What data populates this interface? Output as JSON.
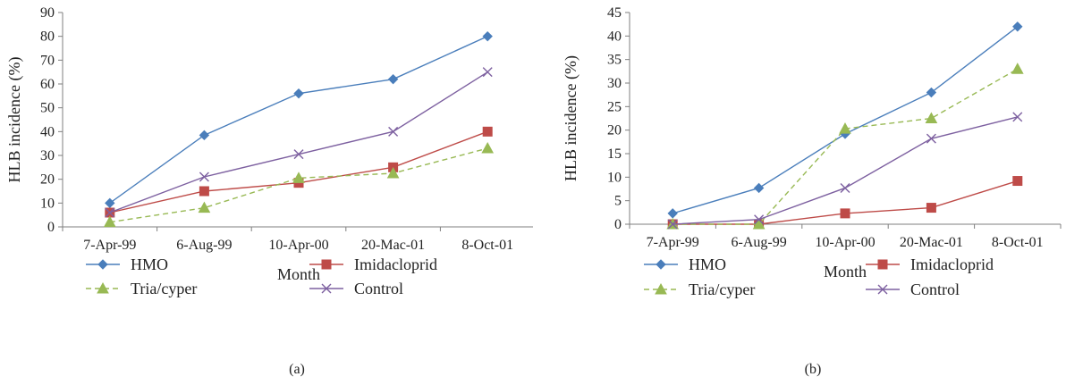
{
  "chart_data": [
    {
      "type": "line",
      "panel_label": "(a)",
      "categories": [
        "7-Apr-99",
        "6-Aug-99",
        "10-Apr-00",
        "20-Mac-01",
        "8-Oct-01"
      ],
      "series": [
        {
          "name": "HMO",
          "values": [
            10,
            38.5,
            56,
            62,
            80
          ],
          "color": "#4a7ebb",
          "marker": "diamond",
          "dash": false
        },
        {
          "name": "Imidacloprid",
          "values": [
            6,
            15,
            18.5,
            25,
            40
          ],
          "color": "#be4b48",
          "marker": "square",
          "dash": false
        },
        {
          "name": "Tria/cyper",
          "values": [
            2,
            8,
            20.5,
            22.5,
            33
          ],
          "color": "#98b954",
          "marker": "triangle",
          "dash": true
        },
        {
          "name": "Control",
          "values": [
            6,
            21,
            30.5,
            40,
            65
          ],
          "color": "#7d60a0",
          "marker": "x",
          "dash": false
        }
      ],
      "xlabel": "Month",
      "ylabel": "HLB incidence (%)",
      "ylim": [
        0,
        90
      ],
      "yticks": [
        0,
        10,
        20,
        30,
        40,
        50,
        60,
        70,
        80,
        90
      ],
      "grid": false,
      "legend": "bottom"
    },
    {
      "type": "line",
      "panel_label": "(b)",
      "categories": [
        "7-Apr-99",
        "6-Aug-99",
        "10-Apr-00",
        "20-Mac-01",
        "8-Oct-01"
      ],
      "series": [
        {
          "name": "HMO",
          "values": [
            2.3,
            7.7,
            19.2,
            28,
            42
          ],
          "color": "#4a7ebb",
          "marker": "diamond",
          "dash": false
        },
        {
          "name": "Imidacloprid",
          "values": [
            0,
            0,
            2.3,
            3.5,
            9.2
          ],
          "color": "#be4b48",
          "marker": "square",
          "dash": false
        },
        {
          "name": "Tria/cyper",
          "values": [
            0,
            0,
            20.3,
            22.5,
            33
          ],
          "color": "#98b954",
          "marker": "triangle",
          "dash": true
        },
        {
          "name": "Control",
          "values": [
            0,
            1,
            7.7,
            18.2,
            22.8
          ],
          "color": "#7d60a0",
          "marker": "x",
          "dash": false
        }
      ],
      "xlabel": "Month",
      "ylabel": "HLB incidence (%)",
      "ylim": [
        0,
        45
      ],
      "yticks": [
        0,
        5,
        10,
        15,
        20,
        25,
        30,
        35,
        40,
        45
      ],
      "grid": false,
      "legend": "bottom"
    }
  ]
}
